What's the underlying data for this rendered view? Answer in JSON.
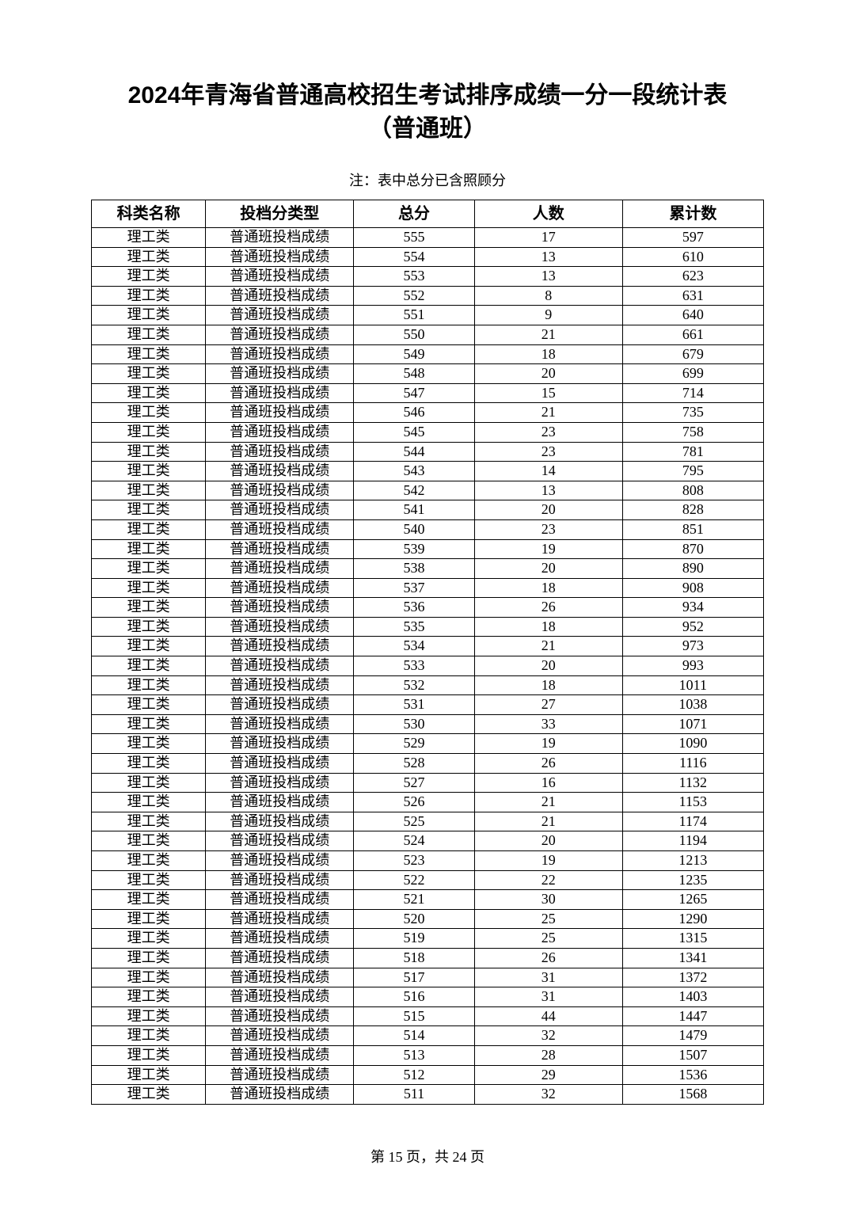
{
  "title_line1": "2024年青海省普通高校招生考试排序成绩一分一段统计表",
  "title_line2": "（普通班）",
  "note": "注：表中总分已含照顾分",
  "footer": "第 15 页，共 24 页",
  "table": {
    "columns": [
      "科类名称",
      "投档分类型",
      "总分",
      "人数",
      "累计数"
    ],
    "col_widths_pct": [
      17,
      22,
      18,
      22,
      21
    ],
    "header_fontsize": 20,
    "cell_fontsize": 18,
    "border_color": "#000000",
    "background_color": "#ffffff",
    "text_color": "#000000",
    "rows": [
      [
        "理工类",
        "普通班投档成绩",
        "555",
        "17",
        "597"
      ],
      [
        "理工类",
        "普通班投档成绩",
        "554",
        "13",
        "610"
      ],
      [
        "理工类",
        "普通班投档成绩",
        "553",
        "13",
        "623"
      ],
      [
        "理工类",
        "普通班投档成绩",
        "552",
        "8",
        "631"
      ],
      [
        "理工类",
        "普通班投档成绩",
        "551",
        "9",
        "640"
      ],
      [
        "理工类",
        "普通班投档成绩",
        "550",
        "21",
        "661"
      ],
      [
        "理工类",
        "普通班投档成绩",
        "549",
        "18",
        "679"
      ],
      [
        "理工类",
        "普通班投档成绩",
        "548",
        "20",
        "699"
      ],
      [
        "理工类",
        "普通班投档成绩",
        "547",
        "15",
        "714"
      ],
      [
        "理工类",
        "普通班投档成绩",
        "546",
        "21",
        "735"
      ],
      [
        "理工类",
        "普通班投档成绩",
        "545",
        "23",
        "758"
      ],
      [
        "理工类",
        "普通班投档成绩",
        "544",
        "23",
        "781"
      ],
      [
        "理工类",
        "普通班投档成绩",
        "543",
        "14",
        "795"
      ],
      [
        "理工类",
        "普通班投档成绩",
        "542",
        "13",
        "808"
      ],
      [
        "理工类",
        "普通班投档成绩",
        "541",
        "20",
        "828"
      ],
      [
        "理工类",
        "普通班投档成绩",
        "540",
        "23",
        "851"
      ],
      [
        "理工类",
        "普通班投档成绩",
        "539",
        "19",
        "870"
      ],
      [
        "理工类",
        "普通班投档成绩",
        "538",
        "20",
        "890"
      ],
      [
        "理工类",
        "普通班投档成绩",
        "537",
        "18",
        "908"
      ],
      [
        "理工类",
        "普通班投档成绩",
        "536",
        "26",
        "934"
      ],
      [
        "理工类",
        "普通班投档成绩",
        "535",
        "18",
        "952"
      ],
      [
        "理工类",
        "普通班投档成绩",
        "534",
        "21",
        "973"
      ],
      [
        "理工类",
        "普通班投档成绩",
        "533",
        "20",
        "993"
      ],
      [
        "理工类",
        "普通班投档成绩",
        "532",
        "18",
        "1011"
      ],
      [
        "理工类",
        "普通班投档成绩",
        "531",
        "27",
        "1038"
      ],
      [
        "理工类",
        "普通班投档成绩",
        "530",
        "33",
        "1071"
      ],
      [
        "理工类",
        "普通班投档成绩",
        "529",
        "19",
        "1090"
      ],
      [
        "理工类",
        "普通班投档成绩",
        "528",
        "26",
        "1116"
      ],
      [
        "理工类",
        "普通班投档成绩",
        "527",
        "16",
        "1132"
      ],
      [
        "理工类",
        "普通班投档成绩",
        "526",
        "21",
        "1153"
      ],
      [
        "理工类",
        "普通班投档成绩",
        "525",
        "21",
        "1174"
      ],
      [
        "理工类",
        "普通班投档成绩",
        "524",
        "20",
        "1194"
      ],
      [
        "理工类",
        "普通班投档成绩",
        "523",
        "19",
        "1213"
      ],
      [
        "理工类",
        "普通班投档成绩",
        "522",
        "22",
        "1235"
      ],
      [
        "理工类",
        "普通班投档成绩",
        "521",
        "30",
        "1265"
      ],
      [
        "理工类",
        "普通班投档成绩",
        "520",
        "25",
        "1290"
      ],
      [
        "理工类",
        "普通班投档成绩",
        "519",
        "25",
        "1315"
      ],
      [
        "理工类",
        "普通班投档成绩",
        "518",
        "26",
        "1341"
      ],
      [
        "理工类",
        "普通班投档成绩",
        "517",
        "31",
        "1372"
      ],
      [
        "理工类",
        "普通班投档成绩",
        "516",
        "31",
        "1403"
      ],
      [
        "理工类",
        "普通班投档成绩",
        "515",
        "44",
        "1447"
      ],
      [
        "理工类",
        "普通班投档成绩",
        "514",
        "32",
        "1479"
      ],
      [
        "理工类",
        "普通班投档成绩",
        "513",
        "28",
        "1507"
      ],
      [
        "理工类",
        "普通班投档成绩",
        "512",
        "29",
        "1536"
      ],
      [
        "理工类",
        "普通班投档成绩",
        "511",
        "32",
        "1568"
      ]
    ]
  }
}
